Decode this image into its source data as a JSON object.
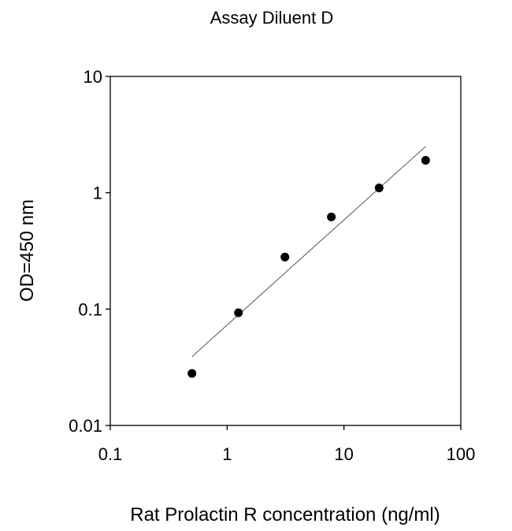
{
  "chart_data": {
    "type": "scatter",
    "title": "Assay Diluent D",
    "xlabel": "Rat Prolactin R concentration (ng/ml)",
    "ylabel": "OD=450 nm",
    "x_scale": "log",
    "y_scale": "log",
    "xlim": [
      0.1,
      100
    ],
    "ylim": [
      0.01,
      10
    ],
    "x_ticks": [
      "0.1",
      "1",
      "10",
      "100"
    ],
    "y_ticks": [
      "0.01",
      "0.1",
      "1",
      "10"
    ],
    "grid": false,
    "legend": "none",
    "series": [
      {
        "x": [
          0.5,
          1.25,
          3.125,
          7.8,
          20,
          50
        ],
        "y": [
          0.028,
          0.093,
          0.28,
          0.62,
          1.1,
          1.9
        ]
      }
    ],
    "fit_line": {
      "x": [
        0.5,
        50
      ],
      "y": [
        0.039,
        2.5
      ]
    },
    "colors": {
      "points": "#000000",
      "fit_line": "#555555",
      "axes": "#000000"
    }
  }
}
